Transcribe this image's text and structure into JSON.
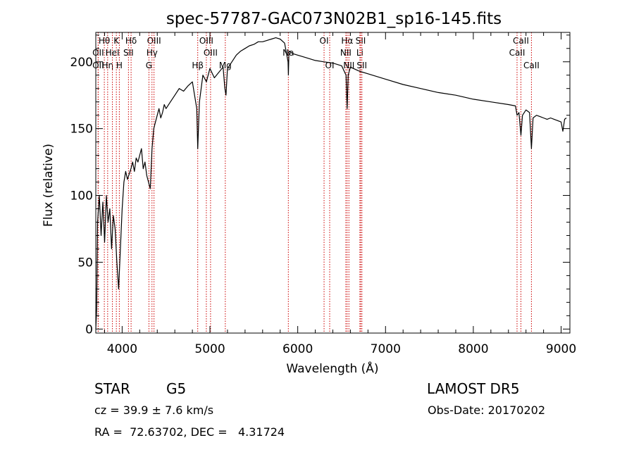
{
  "chart_data": {
    "type": "line",
    "title": "spec-57787-GAC073N02B1_sp16-145.fits",
    "xlabel": "Wavelength (Å)",
    "ylabel": "Flux (relative)",
    "xlim": [
      3700,
      9100
    ],
    "ylim": [
      -3,
      222
    ],
    "x_ticks": [
      4000,
      5000,
      6000,
      7000,
      8000,
      9000
    ],
    "y_ticks": [
      0,
      50,
      100,
      150,
      200
    ],
    "x_minor_step": 200,
    "y_minor_step": 10,
    "grid": false,
    "line_color": "#000000",
    "marker_color": "#cc0000",
    "series": [
      {
        "x": [
          3700,
          3710,
          3720,
          3740,
          3760,
          3780,
          3800,
          3820,
          3840,
          3860,
          3880,
          3900,
          3920,
          3940,
          3960,
          3980,
          4000,
          4020,
          4040,
          4060,
          4080,
          4100,
          4120,
          4140,
          4160,
          4180,
          4200,
          4220,
          4240,
          4260,
          4280,
          4300,
          4320,
          4340,
          4360,
          4380,
          4400,
          4420,
          4440,
          4460,
          4480,
          4500,
          4550,
          4600,
          4650,
          4700,
          4750,
          4800,
          4850,
          4861,
          4880,
          4920,
          4960,
          5000,
          5050,
          5100,
          5150,
          5170,
          5183,
          5200,
          5250,
          5300,
          5350,
          5400,
          5450,
          5500,
          5550,
          5600,
          5650,
          5700,
          5750,
          5800,
          5850,
          5890,
          5894,
          5900,
          5950,
          6000,
          6100,
          6200,
          6300,
          6400,
          6500,
          6550,
          6563,
          6575,
          6600,
          6700,
          6800,
          7000,
          7200,
          7400,
          7600,
          7800,
          8000,
          8200,
          8400,
          8480,
          8498,
          8520,
          8542,
          8560,
          8600,
          8640,
          8662,
          8680,
          8720,
          8760,
          8800,
          8840,
          8880,
          8920,
          8960,
          9000,
          9020,
          9040,
          9060
        ],
        "y": [
          0,
          15,
          80,
          100,
          70,
          95,
          65,
          100,
          80,
          90,
          60,
          85,
          75,
          50,
          30,
          60,
          90,
          110,
          118,
          112,
          116,
          120,
          125,
          118,
          128,
          125,
          130,
          135,
          120,
          125,
          115,
          110,
          105,
          135,
          150,
          155,
          160,
          165,
          158,
          162,
          168,
          165,
          170,
          175,
          180,
          178,
          182,
          185,
          165,
          135,
          170,
          190,
          185,
          195,
          188,
          192,
          196,
          180,
          175,
          195,
          200,
          205,
          208,
          210,
          212,
          213,
          215,
          215,
          216,
          217,
          218,
          217,
          214,
          200,
          190,
          208,
          206,
          205,
          203,
          201,
          200,
          199,
          197,
          190,
          165,
          190,
          196,
          193,
          191,
          187,
          183,
          180,
          177,
          175,
          172,
          170,
          168,
          167,
          160,
          162,
          145,
          160,
          164,
          162,
          135,
          158,
          160,
          159,
          158,
          157,
          158,
          157,
          156,
          155,
          148,
          157,
          158
        ]
      }
    ],
    "line_markers": [
      {
        "label": "Hθ",
        "x": 3797,
        "row": 1
      },
      {
        "label": "OII",
        "x": 3727,
        "row": 2
      },
      {
        "label": "OII",
        "x": 3727,
        "row": 3
      },
      {
        "label": "Hη",
        "x": 3835,
        "row": 3
      },
      {
        "label": "HeI",
        "x": 3889,
        "row": 2
      },
      {
        "label": "K",
        "x": 3934,
        "row": 1
      },
      {
        "label": "H",
        "x": 3968,
        "row": 3
      },
      {
        "label": "Hδ",
        "x": 4102,
        "row": 1
      },
      {
        "label": "SII",
        "x": 4072,
        "row": 2
      },
      {
        "label": "OIII",
        "x": 4363,
        "row": 1
      },
      {
        "label": "Hγ",
        "x": 4340,
        "row": 2
      },
      {
        "label": "G",
        "x": 4305,
        "row": 3
      },
      {
        "label": "OIII",
        "x": 4959,
        "row": 1
      },
      {
        "label": "OIII",
        "x": 5007,
        "row": 2
      },
      {
        "label": "Hβ",
        "x": 4861,
        "row": 3
      },
      {
        "label": "Mg",
        "x": 5175,
        "row": 3
      },
      {
        "label": "Na",
        "x": 5893,
        "row": 2
      },
      {
        "label": "OI",
        "x": 6300,
        "row": 1
      },
      {
        "label": "OI",
        "x": 6364,
        "row": 3
      },
      {
        "label": "Hα",
        "x": 6563,
        "row": 1
      },
      {
        "label": "SII",
        "x": 6717,
        "row": 1
      },
      {
        "label": "NII",
        "x": 6548,
        "row": 2
      },
      {
        "label": "Li",
        "x": 6708,
        "row": 2
      },
      {
        "label": "NII",
        "x": 6583,
        "row": 3
      },
      {
        "label": "SII",
        "x": 6731,
        "row": 3
      },
      {
        "label": "CaII",
        "x": 8542,
        "row": 1
      },
      {
        "label": "CaII",
        "x": 8498,
        "row": 2
      },
      {
        "label": "CaII",
        "x": 8662,
        "row": 3
      }
    ]
  },
  "info": {
    "object_type": "STAR",
    "subclass": "G5",
    "survey": "LAMOST DR5",
    "redshift_line": "cz = 39.9 ± 7.6 km/s",
    "obs_date_line": "Obs-Date: 20170202",
    "coords_line": "RA =  72.63702, DEC =   4.31724"
  }
}
